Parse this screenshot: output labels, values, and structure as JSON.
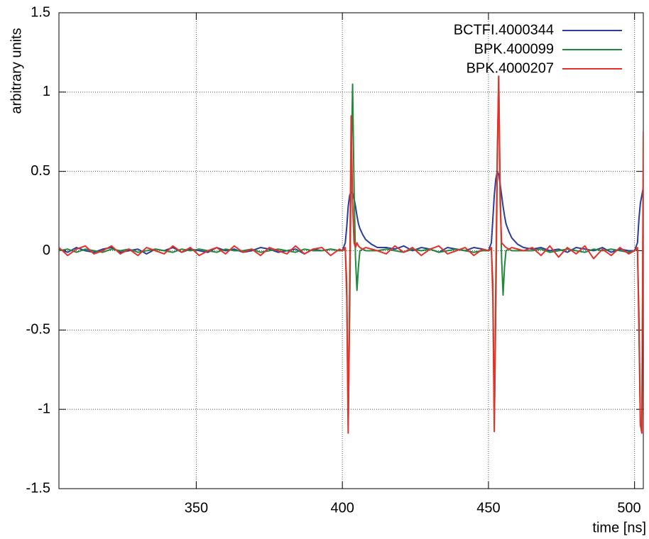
{
  "chart_data": {
    "type": "line",
    "x_label": "time [ns]",
    "y_label": "arbitrary units",
    "xlim": [
      303,
      503
    ],
    "xticks": [
      350,
      400,
      450,
      500
    ],
    "ylim": [
      -1.5,
      1.5
    ],
    "yticks": [
      -1.5,
      -1,
      -0.5,
      0,
      0.5,
      1,
      1.5
    ],
    "grid": true,
    "legend": "top-right",
    "x": [
      303,
      306,
      309,
      312,
      315,
      318,
      321,
      324,
      327,
      330,
      333,
      336,
      339,
      342,
      345,
      348,
      351,
      354,
      357,
      360,
      363,
      366,
      369,
      372,
      375,
      378,
      381,
      384,
      387,
      390,
      393,
      396,
      399,
      400,
      401,
      401.5,
      402,
      402.5,
      403,
      403.5,
      404,
      404.5,
      405,
      405.5,
      406,
      407,
      408,
      410,
      412,
      415,
      418,
      421,
      424,
      427,
      430,
      433,
      436,
      439,
      442,
      445,
      448,
      450,
      451,
      451.5,
      452,
      452.5,
      453,
      453.5,
      454,
      454.5,
      455,
      455.5,
      456,
      457,
      458,
      460,
      462,
      465,
      468,
      471,
      474,
      477,
      480,
      483,
      486,
      489,
      492,
      495,
      498,
      500,
      501,
      501.5,
      502,
      502.5,
      503
    ],
    "series": [
      {
        "name": "BCTFI.4000344",
        "color": "#2b3c9c",
        "values": [
          0.01,
          -0.01,
          0.02,
          0,
          -0.01,
          0.01,
          0.02,
          -0.01,
          0,
          0.01,
          -0.02,
          0.01,
          0,
          0.02,
          -0.01,
          0.01,
          0,
          -0.01,
          0.02,
          0,
          0.01,
          -0.01,
          0,
          0.02,
          0.01,
          -0.01,
          0,
          0.01,
          -0.02,
          0.01,
          0,
          0.01,
          0,
          0,
          0.05,
          0.15,
          0.28,
          0.35,
          0.37,
          0.36,
          0.33,
          0.28,
          0.22,
          0.17,
          0.14,
          0.1,
          0.07,
          0.04,
          0.02,
          0.02,
          0.01,
          0.03,
          0,
          0.02,
          0.01,
          -0.01,
          0.02,
          0.01,
          0,
          0.02,
          0.01,
          0,
          0.05,
          0.2,
          0.35,
          0.45,
          0.5,
          0.48,
          0.42,
          0.35,
          0.28,
          0.22,
          0.17,
          0.12,
          0.08,
          0.04,
          0.02,
          0.01,
          0.02,
          0,
          0.01,
          -0.01,
          0.02,
          0.01,
          0,
          0.02,
          -0.01,
          0.01,
          0,
          0,
          0.05,
          0.2,
          0.3,
          0.35,
          0.4
        ]
      },
      {
        "name": "BPK.400099",
        "color": "#1e8a3a",
        "values": [
          0,
          0.01,
          -0.01,
          0.01,
          0,
          -0.01,
          0.01,
          0,
          0.01,
          -0.01,
          0,
          0.01,
          0,
          -0.01,
          0.01,
          0,
          0.01,
          0,
          -0.01,
          0.01,
          0,
          0,
          0.01,
          -0.01,
          0,
          0.01,
          0,
          -0.01,
          0.01,
          0,
          0,
          0.01,
          0,
          0,
          0.01,
          -0.2,
          -1.1,
          -0.4,
          0.5,
          1.05,
          0.4,
          -0.05,
          -0.25,
          -0.1,
          0,
          0.01,
          0,
          0,
          0,
          0.01,
          0,
          -0.01,
          0.01,
          0,
          0.01,
          -0.01,
          0,
          0.01,
          0,
          -0.01,
          0,
          0,
          0.01,
          -0.2,
          -1.1,
          -0.4,
          0.5,
          1.1,
          0.4,
          -0.05,
          -0.28,
          -0.1,
          0,
          0.01,
          0,
          0,
          0,
          0,
          0.01,
          -0.01,
          0,
          0.01,
          0,
          -0.01,
          0.01,
          0,
          0.01,
          0,
          -0.01,
          0,
          0.01,
          -0.4,
          -1.1,
          -1.1,
          0.5
        ]
      },
      {
        "name": "BPK.4000207",
        "color": "#e8302a",
        "values": [
          0.02,
          -0.03,
          0.01,
          0.03,
          -0.02,
          0,
          0.03,
          -0.02,
          0.01,
          -0.03,
          0.02,
          0,
          -0.02,
          0.03,
          -0.01,
          0.02,
          -0.03,
          0,
          0.02,
          -0.02,
          0.03,
          -0.01,
          0.01,
          -0.03,
          0.02,
          0,
          -0.02,
          0.03,
          -0.02,
          0.01,
          0.02,
          -0.03,
          0.01,
          0,
          0.02,
          -0.3,
          -1.15,
          -0.2,
          0.85,
          0.3,
          0.05,
          0.02,
          0.05,
          0.03,
          0.02,
          0.01,
          0.02,
          0.01,
          0,
          -0.02,
          0.03,
          -0.01,
          0.02,
          -0.03,
          0.01,
          0.03,
          -0.02,
          0,
          0.02,
          -0.03,
          0.01,
          0,
          0.02,
          -0.3,
          -1.14,
          -0.2,
          0.6,
          1.1,
          0.3,
          0.05,
          0.04,
          0.03,
          0.02,
          0.01,
          0.02,
          0.01,
          0,
          0.02,
          -0.03,
          0.03,
          -0.04,
          0.02,
          -0.02,
          0.03,
          -0.05,
          0.01,
          -0.03,
          0.02,
          -0.02,
          0,
          0.02,
          -0.5,
          -1.1,
          -1.15,
          0.75
        ]
      }
    ]
  }
}
